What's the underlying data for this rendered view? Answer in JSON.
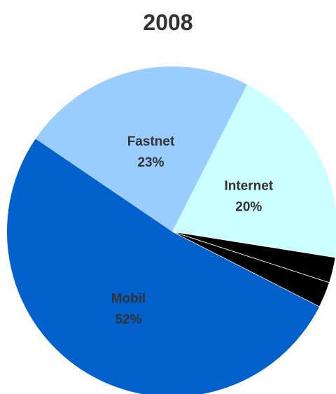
{
  "chart_data": {
    "type": "pie",
    "title": "2008",
    "start_angle_deg": 117,
    "slices": [
      {
        "label": "Mobil",
        "pct_label": "52%",
        "value": 52,
        "color": "#0060CC",
        "show_label": true
      },
      {
        "label": "Fastnet",
        "pct_label": "23%",
        "value": 23,
        "color": "#99CCFF",
        "show_label": true
      },
      {
        "label": "Internet",
        "pct_label": "20%",
        "value": 20,
        "color": "#CCFFFF",
        "show_label": true
      },
      {
        "label": "",
        "pct_label": "",
        "value": 2.5,
        "color": "#000000",
        "show_label": false
      },
      {
        "label": "",
        "pct_label": "",
        "value": 2.5,
        "color": "#000000",
        "show_label": false
      }
    ]
  }
}
